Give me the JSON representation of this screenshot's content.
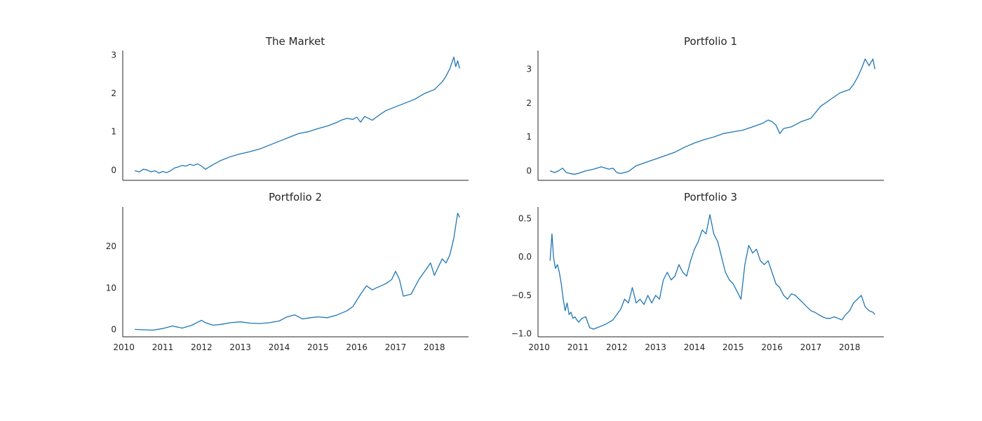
{
  "chart_data": [
    {
      "type": "line",
      "title": "The Market",
      "xlabel": "",
      "ylabel": "",
      "xlim": [
        2009.97,
        2018.88
      ],
      "ylim": [
        -0.27,
        3.12
      ],
      "yticks": [
        0,
        1,
        2,
        3
      ],
      "xticks": [],
      "grid": false,
      "color": "#1f77b4",
      "x": [
        2010.28,
        2010.4,
        2010.5,
        2010.6,
        2010.7,
        2010.8,
        2010.9,
        2011.0,
        2011.1,
        2011.2,
        2011.3,
        2011.4,
        2011.5,
        2011.6,
        2011.7,
        2011.8,
        2011.9,
        2012.0,
        2012.1,
        2012.3,
        2012.5,
        2012.75,
        2013.0,
        2013.25,
        2013.5,
        2013.75,
        2014.0,
        2014.25,
        2014.5,
        2014.75,
        2015.0,
        2015.25,
        2015.5,
        2015.6,
        2015.75,
        2015.9,
        2016.0,
        2016.1,
        2016.2,
        2016.4,
        2016.6,
        2016.75,
        2017.0,
        2017.25,
        2017.5,
        2017.75,
        2018.0,
        2018.1,
        2018.2,
        2018.3,
        2018.4,
        2018.45,
        2018.5,
        2018.55,
        2018.6,
        2018.65
      ],
      "y": [
        -0.02,
        -0.05,
        0.02,
        0.0,
        -0.05,
        -0.02,
        -0.08,
        -0.04,
        -0.07,
        -0.02,
        0.05,
        0.08,
        0.12,
        0.1,
        0.15,
        0.12,
        0.16,
        0.1,
        0.02,
        0.14,
        0.25,
        0.35,
        0.42,
        0.48,
        0.55,
        0.65,
        0.75,
        0.85,
        0.95,
        1.0,
        1.08,
        1.15,
        1.25,
        1.3,
        1.35,
        1.32,
        1.38,
        1.25,
        1.4,
        1.3,
        1.45,
        1.55,
        1.65,
        1.75,
        1.85,
        2.0,
        2.1,
        2.2,
        2.3,
        2.45,
        2.65,
        2.8,
        2.95,
        2.7,
        2.85,
        2.65
      ]
    },
    {
      "type": "line",
      "title": "Portfolio 1",
      "xlabel": "",
      "ylabel": "",
      "xlim": [
        2009.97,
        2018.88
      ],
      "ylim": [
        -0.28,
        3.55
      ],
      "yticks": [
        0,
        1,
        2,
        3
      ],
      "xticks": [],
      "grid": false,
      "color": "#1f77b4",
      "x": [
        2010.28,
        2010.4,
        2010.5,
        2010.6,
        2010.7,
        2010.8,
        2010.9,
        2011.0,
        2011.2,
        2011.4,
        2011.6,
        2011.8,
        2011.9,
        2012.0,
        2012.1,
        2012.3,
        2012.5,
        2012.75,
        2013.0,
        2013.25,
        2013.5,
        2013.75,
        2014.0,
        2014.25,
        2014.5,
        2014.75,
        2015.0,
        2015.25,
        2015.5,
        2015.75,
        2015.9,
        2016.0,
        2016.1,
        2016.2,
        2016.3,
        2016.5,
        2016.75,
        2017.0,
        2017.25,
        2017.5,
        2017.75,
        2018.0,
        2018.1,
        2018.2,
        2018.3,
        2018.4,
        2018.5,
        2018.55,
        2018.6,
        2018.65
      ],
      "y": [
        0.0,
        -0.05,
        0.0,
        0.08,
        -0.05,
        -0.08,
        -0.1,
        -0.08,
        0.0,
        0.05,
        0.12,
        0.05,
        0.08,
        -0.05,
        -0.08,
        -0.02,
        0.15,
        0.25,
        0.35,
        0.45,
        0.55,
        0.7,
        0.82,
        0.92,
        1.0,
        1.1,
        1.15,
        1.2,
        1.3,
        1.4,
        1.5,
        1.45,
        1.35,
        1.1,
        1.25,
        1.3,
        1.45,
        1.55,
        1.9,
        2.1,
        2.3,
        2.4,
        2.55,
        2.75,
        3.0,
        3.3,
        3.1,
        3.2,
        3.3,
        3.0
      ]
    },
    {
      "type": "line",
      "title": "Portfolio 2",
      "xlabel": "",
      "ylabel": "",
      "xlim": [
        2009.97,
        2018.88
      ],
      "ylim": [
        -1.8,
        29.5
      ],
      "yticks": [
        0,
        10,
        20
      ],
      "xticks": [
        2010,
        2011,
        2012,
        2013,
        2014,
        2015,
        2016,
        2017,
        2018
      ],
      "grid": false,
      "color": "#1f77b4",
      "x": [
        2010.28,
        2010.5,
        2010.75,
        2011.0,
        2011.25,
        2011.5,
        2011.75,
        2012.0,
        2012.1,
        2012.3,
        2012.5,
        2012.75,
        2013.0,
        2013.25,
        2013.5,
        2013.75,
        2014.0,
        2014.2,
        2014.4,
        2014.6,
        2014.8,
        2015.0,
        2015.25,
        2015.5,
        2015.75,
        2015.9,
        2016.0,
        2016.1,
        2016.25,
        2016.4,
        2016.5,
        2016.75,
        2016.9,
        2017.0,
        2017.1,
        2017.2,
        2017.4,
        2017.6,
        2017.75,
        2017.9,
        2018.0,
        2018.1,
        2018.2,
        2018.3,
        2018.4,
        2018.45,
        2018.5,
        2018.55,
        2018.6,
        2018.65
      ],
      "y": [
        0.0,
        -0.1,
        -0.2,
        0.2,
        0.8,
        0.3,
        1.0,
        2.2,
        1.6,
        1.0,
        1.2,
        1.6,
        1.8,
        1.5,
        1.4,
        1.6,
        2.0,
        3.0,
        3.5,
        2.5,
        2.8,
        3.0,
        2.8,
        3.5,
        4.5,
        5.5,
        7.0,
        8.5,
        10.5,
        9.5,
        10.0,
        11.0,
        12.0,
        14.0,
        12.0,
        8.0,
        8.5,
        12.0,
        14.0,
        16.0,
        13.0,
        15.0,
        17.0,
        16.0,
        18.0,
        20.0,
        22.0,
        25.0,
        28.0,
        27.0
      ]
    },
    {
      "type": "line",
      "title": "Portfolio 3",
      "xlabel": "",
      "ylabel": "",
      "xlim": [
        2009.97,
        2018.88
      ],
      "ylim": [
        -1.04,
        0.65
      ],
      "yticks": [
        -1.0,
        -0.5,
        0.0,
        0.5
      ],
      "xticks": [
        2010,
        2011,
        2012,
        2013,
        2014,
        2015,
        2016,
        2017,
        2018
      ],
      "grid": false,
      "color": "#1f77b4",
      "x": [
        2010.28,
        2010.33,
        2010.37,
        2010.42,
        2010.47,
        2010.52,
        2010.57,
        2010.62,
        2010.67,
        2010.72,
        2010.77,
        2010.82,
        2010.87,
        2010.92,
        2010.97,
        2011.02,
        2011.1,
        2011.2,
        2011.3,
        2011.4,
        2011.5,
        2011.6,
        2011.7,
        2011.8,
        2011.9,
        2012.0,
        2012.1,
        2012.2,
        2012.3,
        2012.4,
        2012.5,
        2012.6,
        2012.7,
        2012.8,
        2012.9,
        2013.0,
        2013.1,
        2013.2,
        2013.3,
        2013.4,
        2013.5,
        2013.6,
        2013.7,
        2013.8,
        2013.9,
        2014.0,
        2014.1,
        2014.2,
        2014.3,
        2014.4,
        2014.5,
        2014.6,
        2014.7,
        2014.8,
        2014.9,
        2015.0,
        2015.1,
        2015.2,
        2015.3,
        2015.4,
        2015.5,
        2015.6,
        2015.7,
        2015.8,
        2015.9,
        2016.0,
        2016.1,
        2016.2,
        2016.3,
        2016.4,
        2016.5,
        2016.6,
        2016.7,
        2016.8,
        2016.9,
        2017.0,
        2017.1,
        2017.2,
        2017.3,
        2017.4,
        2017.5,
        2017.6,
        2017.7,
        2017.8,
        2017.9,
        2018.0,
        2018.1,
        2018.2,
        2018.3,
        2018.4,
        2018.5,
        2018.6,
        2018.65
      ],
      "y": [
        -0.05,
        0.3,
        0.0,
        -0.15,
        -0.1,
        -0.2,
        -0.35,
        -0.55,
        -0.7,
        -0.6,
        -0.75,
        -0.72,
        -0.8,
        -0.78,
        -0.82,
        -0.85,
        -0.8,
        -0.78,
        -0.92,
        -0.94,
        -0.92,
        -0.9,
        -0.88,
        -0.85,
        -0.82,
        -0.75,
        -0.68,
        -0.55,
        -0.6,
        -0.4,
        -0.6,
        -0.55,
        -0.62,
        -0.5,
        -0.6,
        -0.5,
        -0.55,
        -0.3,
        -0.2,
        -0.3,
        -0.25,
        -0.1,
        -0.2,
        -0.25,
        -0.05,
        0.1,
        0.2,
        0.35,
        0.3,
        0.55,
        0.3,
        0.2,
        0.0,
        -0.2,
        -0.3,
        -0.35,
        -0.45,
        -0.55,
        -0.1,
        0.15,
        0.05,
        0.1,
        -0.05,
        -0.1,
        -0.05,
        -0.2,
        -0.35,
        -0.4,
        -0.5,
        -0.55,
        -0.48,
        -0.5,
        -0.55,
        -0.6,
        -0.65,
        -0.7,
        -0.72,
        -0.75,
        -0.78,
        -0.8,
        -0.8,
        -0.78,
        -0.8,
        -0.82,
        -0.75,
        -0.7,
        -0.6,
        -0.55,
        -0.5,
        -0.65,
        -0.7,
        -0.72,
        -0.75
      ]
    }
  ]
}
